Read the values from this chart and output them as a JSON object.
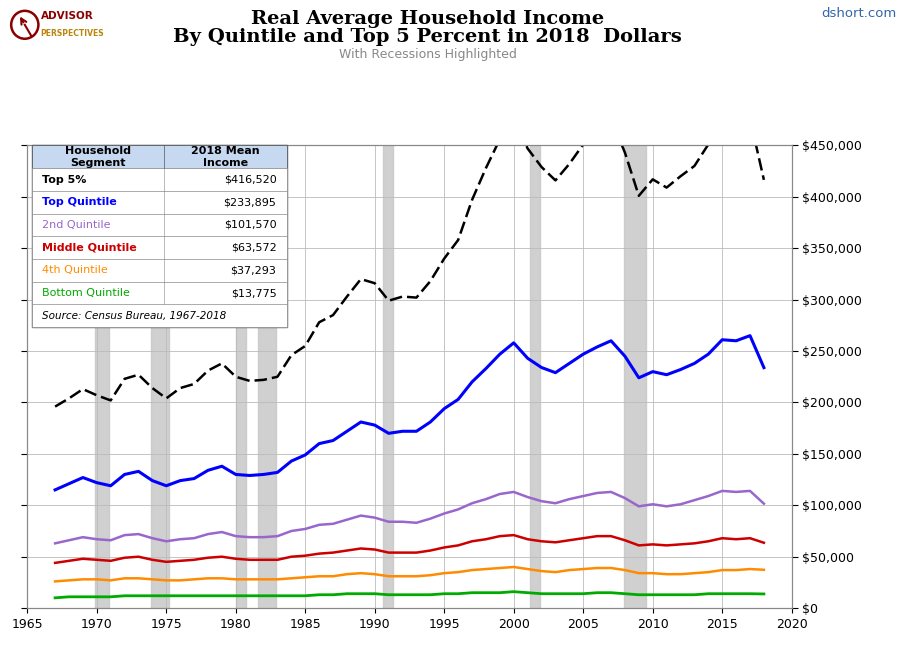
{
  "title_line1": "Real Average Household Income",
  "title_line2": "By Quintile and Top 5 Percent in 2018  Dollars",
  "subtitle": "With Recessions Highlighted",
  "source_text": "dshort.com",
  "years": [
    1967,
    1968,
    1969,
    1970,
    1971,
    1972,
    1973,
    1974,
    1975,
    1976,
    1977,
    1978,
    1979,
    1980,
    1981,
    1982,
    1983,
    1984,
    1985,
    1986,
    1987,
    1988,
    1989,
    1990,
    1991,
    1992,
    1993,
    1994,
    1995,
    1996,
    1997,
    1998,
    1999,
    2000,
    2001,
    2002,
    2003,
    2004,
    2005,
    2006,
    2007,
    2008,
    2009,
    2010,
    2011,
    2012,
    2013,
    2014,
    2015,
    2016,
    2017,
    2018
  ],
  "top5": [
    196000,
    204000,
    213000,
    207000,
    202000,
    223000,
    227000,
    214000,
    204000,
    214000,
    218000,
    231000,
    238000,
    225000,
    221000,
    222000,
    225000,
    246000,
    255000,
    278000,
    285000,
    303000,
    320000,
    316000,
    299000,
    303000,
    302000,
    318000,
    340000,
    358000,
    397000,
    428000,
    456000,
    476000,
    447000,
    429000,
    416000,
    432000,
    451000,
    467000,
    476000,
    443000,
    401000,
    417000,
    409000,
    420000,
    430000,
    451000,
    470000,
    472000,
    476000,
    416520
  ],
  "top_quintile": [
    115000,
    121000,
    127000,
    122000,
    119000,
    130000,
    133000,
    124000,
    119000,
    124000,
    126000,
    134000,
    138000,
    130000,
    129000,
    130000,
    132000,
    143000,
    149000,
    160000,
    163000,
    172000,
    181000,
    178000,
    170000,
    172000,
    172000,
    181000,
    194000,
    203000,
    220000,
    233000,
    247000,
    258000,
    243000,
    234000,
    229000,
    238000,
    247000,
    254000,
    260000,
    245000,
    224000,
    230000,
    227000,
    232000,
    238000,
    247000,
    261000,
    260000,
    265000,
    233895
  ],
  "second_quintile": [
    63000,
    66000,
    69000,
    67000,
    66000,
    71000,
    72000,
    68000,
    65000,
    67000,
    68000,
    72000,
    74000,
    70000,
    69000,
    69000,
    70000,
    75000,
    77000,
    81000,
    82000,
    86000,
    90000,
    88000,
    84000,
    84000,
    83000,
    87000,
    92000,
    96000,
    102000,
    106000,
    111000,
    113000,
    108000,
    104000,
    102000,
    106000,
    109000,
    112000,
    113000,
    107000,
    99000,
    101000,
    99000,
    101000,
    105000,
    109000,
    114000,
    113000,
    114000,
    101570
  ],
  "middle_quintile": [
    44000,
    46000,
    48000,
    47000,
    46000,
    49000,
    50000,
    47000,
    45000,
    46000,
    47000,
    49000,
    50000,
    48000,
    47000,
    47000,
    47000,
    50000,
    51000,
    53000,
    54000,
    56000,
    58000,
    57000,
    54000,
    54000,
    54000,
    56000,
    59000,
    61000,
    65000,
    67000,
    70000,
    71000,
    67000,
    65000,
    64000,
    66000,
    68000,
    70000,
    70000,
    66000,
    61000,
    62000,
    61000,
    62000,
    63000,
    65000,
    68000,
    67000,
    68000,
    63572
  ],
  "fourth_quintile": [
    26000,
    27000,
    28000,
    28000,
    27000,
    29000,
    29000,
    28000,
    27000,
    27000,
    28000,
    29000,
    29000,
    28000,
    28000,
    28000,
    28000,
    29000,
    30000,
    31000,
    31000,
    33000,
    34000,
    33000,
    31000,
    31000,
    31000,
    32000,
    34000,
    35000,
    37000,
    38000,
    39000,
    40000,
    38000,
    36000,
    35000,
    37000,
    38000,
    39000,
    39000,
    37000,
    34000,
    34000,
    33000,
    33000,
    34000,
    35000,
    37000,
    37000,
    38000,
    37293
  ],
  "bottom_quintile": [
    10000,
    11000,
    11000,
    11000,
    11000,
    12000,
    12000,
    12000,
    12000,
    12000,
    12000,
    12000,
    12000,
    12000,
    12000,
    12000,
    12000,
    12000,
    12000,
    13000,
    13000,
    14000,
    14000,
    14000,
    13000,
    13000,
    13000,
    13000,
    14000,
    14000,
    15000,
    15000,
    15000,
    16000,
    15000,
    14000,
    14000,
    14000,
    14000,
    15000,
    15000,
    14000,
    13000,
    13000,
    13000,
    13000,
    13000,
    14000,
    14000,
    14000,
    14000,
    13775
  ],
  "recessions": [
    [
      1969.9,
      1970.9
    ],
    [
      1973.9,
      1975.2
    ],
    [
      1980.0,
      1980.7
    ],
    [
      1981.6,
      1982.9
    ],
    [
      1990.6,
      1991.3
    ],
    [
      2001.2,
      2001.9
    ],
    [
      2007.9,
      2009.5
    ]
  ],
  "colors": {
    "top5": "#000000",
    "top_quintile": "#0000FF",
    "second_quintile": "#9966CC",
    "middle_quintile": "#CC0000",
    "fourth_quintile": "#FF8C00",
    "bottom_quintile": "#00AA00"
  },
  "table_header_bg": "#C6D9F1",
  "recession_color": "#C8C8C8",
  "xlim": [
    1965,
    2020
  ],
  "ylim": [
    0,
    450000
  ],
  "yticks": [
    0,
    50000,
    100000,
    150000,
    200000,
    250000,
    300000,
    350000,
    400000,
    450000
  ],
  "xticks": [
    1965,
    1970,
    1975,
    1980,
    1985,
    1990,
    1995,
    2000,
    2005,
    2010,
    2015,
    2020
  ],
  "table_segments": [
    "Top 5%",
    "Top Quintile",
    "2nd Quintile",
    "Middle Quintile",
    "4th Quintile",
    "Bottom Quintile"
  ],
  "table_incomes": [
    "$416,520",
    "$233,895",
    "$101,570",
    "$63,572",
    "$37,293",
    "$13,775"
  ],
  "table_colors": [
    "#000000",
    "#0000FF",
    "#9966CC",
    "#CC0000",
    "#FF8C00",
    "#00AA00"
  ],
  "table_bold": [
    true,
    true,
    false,
    true,
    false,
    false
  ],
  "source_note": "Source: Census Bureau, 1967-2018"
}
